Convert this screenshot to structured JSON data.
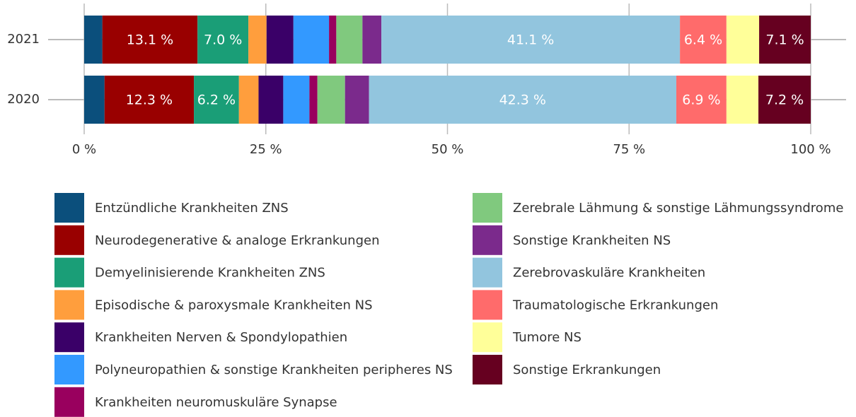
{
  "chart_data": {
    "type": "stacked_bar_horizontal",
    "categories": [
      "2021",
      "2020"
    ],
    "xlim": [
      0,
      100
    ],
    "xticks": [
      {
        "value": 0,
        "label": "0 %"
      },
      {
        "value": 25,
        "label": "25 %"
      },
      {
        "value": 50,
        "label": "50 %"
      },
      {
        "value": 75,
        "label": "75 %"
      },
      {
        "value": 100,
        "label": "100 %"
      }
    ],
    "grid": true,
    "series": [
      {
        "name": "Entzündliche Krankheiten ZNS",
        "color": "#0b4f7c",
        "values": [
          2.5,
          2.8
        ]
      },
      {
        "name": "Neurodegenerative & analoge Erkrankungen",
        "color": "#990000",
        "values": [
          13.1,
          12.3
        ],
        "value_labels": [
          "13.1 %",
          "12.3 %"
        ]
      },
      {
        "name": "Demyelinisierende Krankheiten ZNS",
        "color": "#1a9e77",
        "values": [
          7.0,
          6.2
        ],
        "value_labels": [
          "7.0 %",
          "6.2 %"
        ]
      },
      {
        "name": "Episodische & paroxysmale Krankheiten NS",
        "color": "#ff9e3d",
        "values": [
          2.5,
          2.7
        ]
      },
      {
        "name": "Krankheiten Nerven & Spondylopathien",
        "color": "#3a0068",
        "values": [
          3.7,
          3.4
        ]
      },
      {
        "name": "Polyneuropathien & sonstige Krankheiten peripheres NS",
        "color": "#3399ff",
        "values": [
          4.9,
          3.6
        ]
      },
      {
        "name": "Krankheiten neuromuskuläre Synapse",
        "color": "#99005e",
        "values": [
          1.0,
          1.1
        ]
      },
      {
        "name": "Zerebrale Lähmung & sonstige Lähmungssyndrome",
        "color": "#80c97e",
        "values": [
          3.6,
          3.8
        ]
      },
      {
        "name": "Sonstige Krankheiten NS",
        "color": "#7b2a8c",
        "values": [
          2.6,
          3.3
        ]
      },
      {
        "name": "Zerebrovaskuläre Krankheiten",
        "color": "#92c5de",
        "values": [
          41.1,
          42.3
        ],
        "value_labels": [
          "41.1 %",
          "42.3 %"
        ]
      },
      {
        "name": "Traumatologische Erkrankungen",
        "color": "#ff6b6b",
        "values": [
          6.4,
          6.9
        ],
        "value_labels": [
          "6.4 %",
          "6.9 %"
        ]
      },
      {
        "name": "Tumore NS",
        "color": "#ffff99",
        "values": [
          4.5,
          4.4
        ]
      },
      {
        "name": "Sonstige Erkrankungen",
        "color": "#660020",
        "values": [
          7.1,
          7.2
        ],
        "value_labels": [
          "7.1 %",
          "7.2 %"
        ]
      }
    ]
  }
}
